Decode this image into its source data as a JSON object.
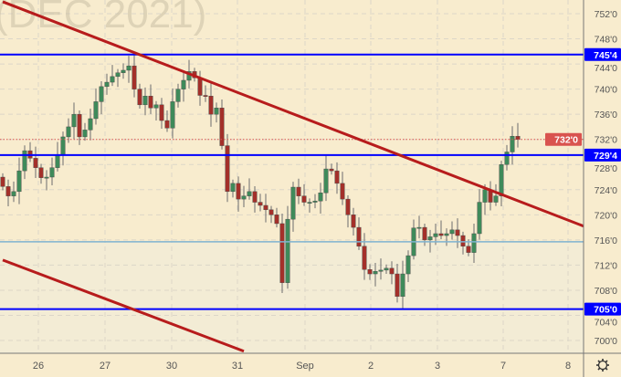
{
  "chart_data": {
    "type": "candlestick",
    "watermark": "(DEC 2021)",
    "x_ticks": [
      "26",
      "27",
      "30",
      "31",
      "Sep",
      "2",
      "3",
      "7",
      "8"
    ],
    "y_ticks": [
      "752'0",
      "748'0",
      "744'0",
      "740'0",
      "736'0",
      "732'0",
      "728'0",
      "724'0",
      "720'0",
      "716'0",
      "712'0",
      "708'0",
      "704'0",
      "700'0"
    ],
    "y_tick_values": [
      752,
      748,
      744,
      740,
      736,
      732,
      728,
      724,
      720,
      716,
      712,
      708,
      704,
      700
    ],
    "ylim": [
      698,
      754
    ],
    "closes": [
      724.5,
      723,
      723.7,
      727,
      730.2,
      729,
      727.5,
      725.9,
      726,
      727.5,
      729.5,
      732.4,
      734,
      736,
      732.4,
      733.5,
      735.3,
      738,
      740.4,
      741.1,
      742,
      742.6,
      743,
      743.7,
      740,
      737.5,
      738.9,
      737,
      737.5,
      735,
      733.8,
      738,
      740,
      741.4,
      742.8,
      741.8,
      739,
      738.9,
      736,
      737,
      731,
      723.7,
      725,
      722.5,
      723,
      723.7,
      722,
      721.5,
      720.8,
      720,
      718.6,
      709.2,
      719.3,
      724.4,
      723,
      722,
      722,
      722.2,
      723.5,
      727.3,
      727,
      725,
      722.5,
      720,
      718,
      715,
      711.3,
      710.6,
      711,
      711.2,
      711.5,
      710.6,
      707,
      710.6,
      713.5,
      717.9,
      718,
      716,
      716.5,
      717,
      716.7,
      717,
      717.6,
      716.7,
      715,
      714,
      717,
      722,
      724,
      722,
      723,
      728,
      730,
      732.5,
      732
    ],
    "first_open": 726,
    "levels": [
      {
        "price": 745.5,
        "label": "745'4",
        "color": "#0000ff"
      },
      {
        "price": 729.5,
        "label": "729'4",
        "color": "#0000ff"
      },
      {
        "price": 705.0,
        "label": "705'0",
        "color": "#0000ff"
      },
      {
        "price": 715.7,
        "label": "",
        "color": "#7fb3d0"
      }
    ],
    "last_price": {
      "price": 732.0,
      "label": "732'0",
      "color": "#d9534f"
    },
    "trendlines": [
      {
        "from": [
          0,
          753.9
        ],
        "to": [
          106,
          718.2
        ],
        "color": "#b71c1c"
      },
      {
        "from": [
          0,
          712.8
        ],
        "to": [
          44,
          698.3
        ],
        "color": "#b71c1c"
      }
    ],
    "colors": {
      "up": "#3f8a5a",
      "down": "#a3302a",
      "wick": "#6d6d6d",
      "background": "#f8ecce",
      "lower_zone": "#f3ecd5"
    }
  },
  "toolbar": {
    "settings_icon": "gear-icon"
  }
}
